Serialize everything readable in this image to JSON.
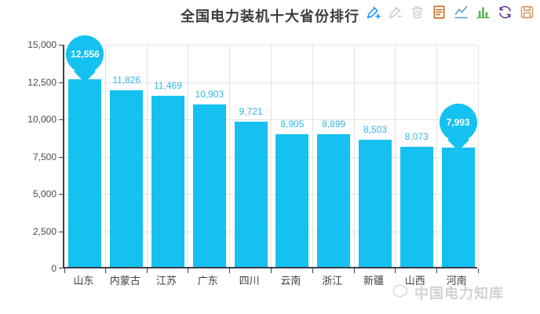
{
  "title": "全国电力装机十大省份排行",
  "toolbar": {
    "icons": [
      {
        "name": "add-marker-icon",
        "color": "#1e90ff",
        "enabled": true
      },
      {
        "name": "remove-marker-icon",
        "color": "#cbcbcb",
        "enabled": false
      },
      {
        "name": "clear-markers-icon",
        "color": "#d4d4d4",
        "enabled": false
      },
      {
        "name": "data-view-icon",
        "color": "#c1691e",
        "enabled": true
      },
      {
        "name": "line-chart-icon",
        "color": "#5b9bd5",
        "enabled": true
      },
      {
        "name": "bar-chart-icon",
        "color": "#58b158",
        "enabled": true
      },
      {
        "name": "restore-icon",
        "color": "#5f2d91",
        "enabled": true
      },
      {
        "name": "save-image-icon",
        "color": "#d89a66",
        "enabled": true
      }
    ]
  },
  "chart_data": {
    "type": "bar",
    "title": "全国电力装机十大省份排行",
    "categories": [
      "山东",
      "内蒙古",
      "江苏",
      "广东",
      "四川",
      "云南",
      "浙江",
      "新疆",
      "山西",
      "河南"
    ],
    "values": [
      12556,
      11826,
      11469,
      10903,
      9721,
      8905,
      8899,
      8503,
      8073,
      7993
    ],
    "value_labels": [
      "12,556",
      "11,826",
      "11,469",
      "10,903",
      "9,721",
      "8,905",
      "8,899",
      "8,503",
      "8,073",
      "7,993"
    ],
    "xlabel": "",
    "ylabel": "",
    "ylim": [
      0,
      15000
    ],
    "ytick_interval": 2500,
    "ytick_labels": [
      "0",
      "2,500",
      "5,000",
      "7,500",
      "10,000",
      "12,500",
      "15,000"
    ],
    "grid": true,
    "legend_position": "none",
    "pin_indices": [
      0,
      9
    ],
    "colors": {
      "bar": "#14c1f0",
      "value_label": "#35b5e6",
      "pin_fill": "#14c1f0",
      "pin_text": "#ffffff",
      "axis_line": "#39414d",
      "grid_line": "#e3e3e3",
      "tick_label": "#4a4a4a"
    }
  },
  "watermark": {
    "text": "中国电力知库"
  }
}
